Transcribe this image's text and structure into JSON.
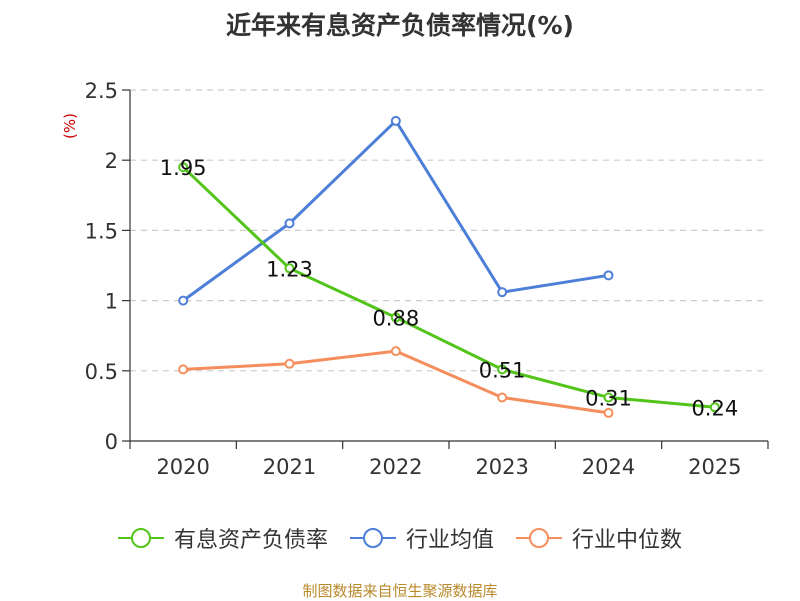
{
  "chart_data": {
    "type": "line",
    "title": "近年来有息资产负债率情况(%)",
    "xlabel": "",
    "ylabel": "(%)",
    "categories": [
      "2020",
      "2021",
      "2022",
      "2023",
      "2024",
      "2025"
    ],
    "ylim": [
      0,
      2.5
    ],
    "yticks": [
      0,
      0.5,
      1,
      1.5,
      2,
      2.5
    ],
    "ytick_labels": [
      "0",
      "0.5",
      "1",
      "1.5",
      "2",
      "2.5"
    ],
    "grid": true,
    "legend_position": "bottom",
    "series": [
      {
        "name": "有息资产负债率",
        "color": "#52c41a",
        "show_labels": true,
        "values": [
          1.95,
          1.23,
          0.88,
          0.51,
          0.31,
          0.24
        ],
        "labels": [
          "1.95",
          "1.23",
          "0.88",
          "0.51",
          "0.31",
          "0.24"
        ]
      },
      {
        "name": "行业均值",
        "color": "#4e7fd8",
        "show_labels": false,
        "values": [
          1.0,
          1.55,
          2.28,
          1.06,
          1.18,
          null
        ]
      },
      {
        "name": "行业中位数",
        "color": "#f58e5d",
        "show_labels": false,
        "values": [
          0.51,
          0.55,
          0.64,
          0.31,
          0.2,
          null
        ]
      }
    ]
  },
  "footer": "制图数据来自恒生聚源数据库"
}
